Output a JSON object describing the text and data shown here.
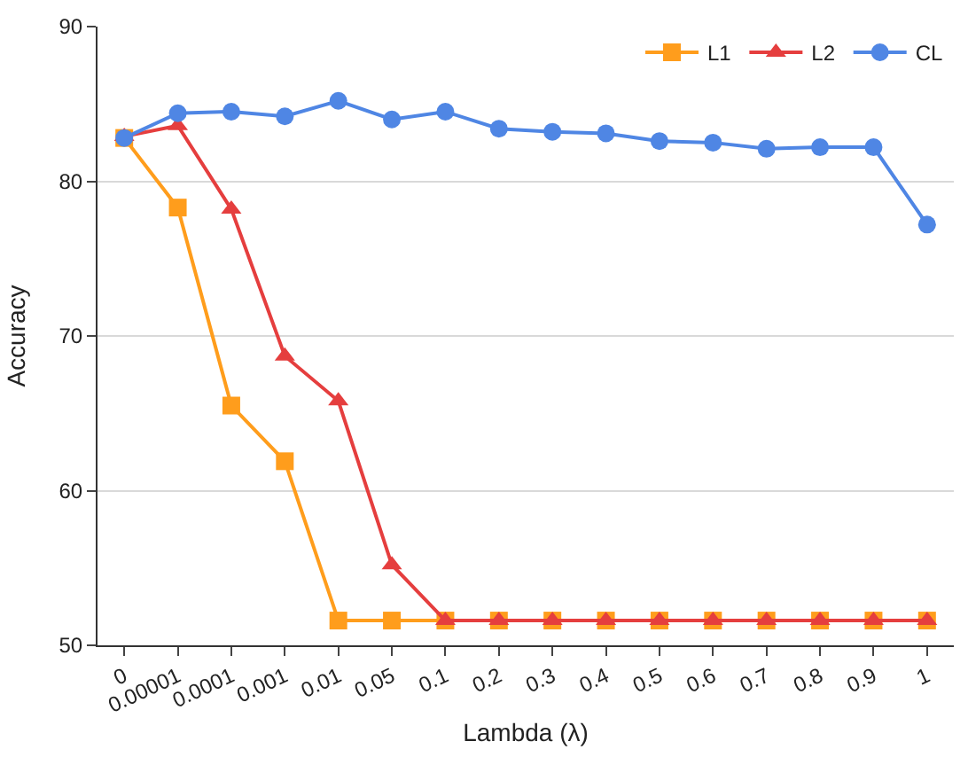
{
  "chart_data": {
    "type": "line",
    "xlabel": "Lambda (λ)",
    "ylabel": "Accuracy",
    "categories": [
      "0",
      "0.00001",
      "0.0001",
      "0.001",
      "0.01",
      "0.05",
      "0.1",
      "0.2",
      "0.3",
      "0.4",
      "0.5",
      "0.6",
      "0.7",
      "0.8",
      "0.9",
      "1"
    ],
    "series": [
      {
        "name": "L1",
        "color": "#ff9d1c",
        "marker": "square",
        "values": [
          82.8,
          78.3,
          65.5,
          61.9,
          51.6,
          51.6,
          51.6,
          51.6,
          51.6,
          51.6,
          51.6,
          51.6,
          51.6,
          51.6,
          51.6,
          51.6
        ]
      },
      {
        "name": "L2",
        "color": "#e53e3e",
        "marker": "triangle",
        "values": [
          82.9,
          83.6,
          78.2,
          68.7,
          65.8,
          55.2,
          51.6,
          51.6,
          51.6,
          51.6,
          51.6,
          51.6,
          51.6,
          51.6,
          51.6,
          51.6
        ]
      },
      {
        "name": "CL",
        "color": "#4f86e4",
        "marker": "circle",
        "values": [
          82.8,
          84.4,
          84.5,
          84.2,
          85.2,
          84.0,
          84.5,
          83.4,
          83.2,
          83.1,
          82.6,
          82.5,
          82.1,
          82.2,
          82.2,
          77.2
        ]
      }
    ],
    "ylim": [
      50,
      90
    ],
    "yticks": [
      50,
      60,
      70,
      80,
      90
    ],
    "grid": "y",
    "legend": "top right",
    "line_style": "solid"
  }
}
